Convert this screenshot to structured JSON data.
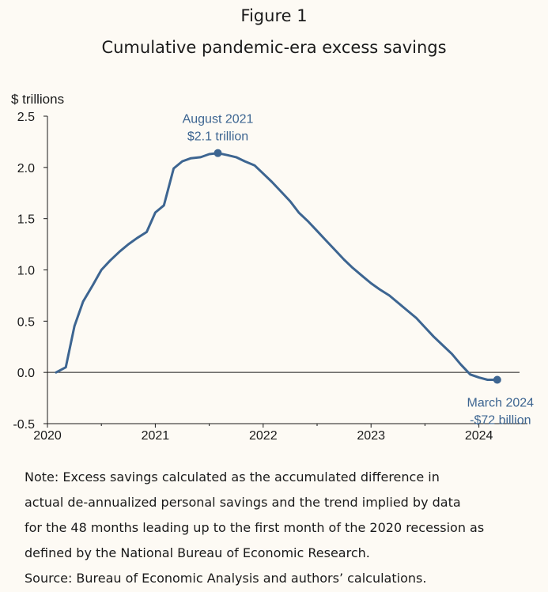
{
  "figure_label": "Figure 1",
  "figure_title": "Cumulative pandemic-era excess savings",
  "note_lines": [
    "Note: Excess savings calculated as the accumulated difference in",
    "actual de-annualized personal savings and the trend implied by data",
    "for the 48 months leading up to the first month of the 2020 recession as",
    "defined by the National Bureau of Economic Research.",
    "Source: Bureau of Economic Analysis and authors’ calculations."
  ],
  "chart_data": {
    "type": "line",
    "title": "Cumulative pandemic-era excess savings",
    "ylabel": "$ trillions",
    "xlabel": "",
    "ylim": [
      -0.5,
      2.5
    ],
    "xlim": [
      2020,
      2024.45
    ],
    "yticks": [
      "2.5",
      "2.0",
      "1.5",
      "1.0",
      "0.5",
      "0.0",
      "-0.5"
    ],
    "ytick_values": [
      2.5,
      2.0,
      1.5,
      1.0,
      0.5,
      0.0,
      -0.5
    ],
    "xticks": [
      "2020",
      "2021",
      "2022",
      "2023",
      "2024"
    ],
    "xtick_values": [
      2020,
      2021,
      2022,
      2023,
      2024
    ],
    "line_color": "#3d6591",
    "series": [
      {
        "x": [
          2020.08,
          2020.17,
          2020.25,
          2020.33,
          2020.42,
          2020.5,
          2020.58,
          2020.67,
          2020.75,
          2020.83,
          2020.92,
          2021.0,
          2021.08,
          2021.17,
          2021.25,
          2021.33,
          2021.42,
          2021.5,
          2021.58,
          2021.67,
          2021.75,
          2021.83,
          2021.92,
          2022.0,
          2022.08,
          2022.17,
          2022.25,
          2022.33,
          2022.42,
          2022.5,
          2022.58,
          2022.67,
          2022.75,
          2022.83,
          2022.92,
          2023.0,
          2023.08,
          2023.17,
          2023.25,
          2023.33,
          2023.42,
          2023.5,
          2023.58,
          2023.67,
          2023.75,
          2023.83,
          2023.92,
          2024.0,
          2024.08,
          2024.17
        ],
        "y": [
          0.0,
          0.05,
          0.45,
          0.69,
          0.85,
          1.0,
          1.09,
          1.18,
          1.25,
          1.31,
          1.37,
          1.56,
          1.63,
          1.99,
          2.06,
          2.09,
          2.1,
          2.13,
          2.14,
          2.12,
          2.1,
          2.06,
          2.02,
          1.94,
          1.86,
          1.76,
          1.67,
          1.56,
          1.47,
          1.38,
          1.29,
          1.19,
          1.1,
          1.02,
          0.94,
          0.87,
          0.81,
          0.75,
          0.68,
          0.61,
          0.53,
          0.44,
          0.35,
          0.26,
          0.18,
          0.08,
          -0.02,
          -0.05,
          -0.072,
          -0.072
        ]
      }
    ],
    "annotations": [
      {
        "line1": "August 2021",
        "line2": "$2.1 trillion",
        "x": 2021.58,
        "y": 2.14
      },
      {
        "line1": "March 2024",
        "line2": "-$72 billion",
        "x": 2024.17,
        "y": -0.072
      }
    ]
  }
}
